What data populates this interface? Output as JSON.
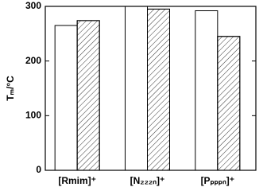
{
  "chart_data": {
    "type": "bar",
    "y_label": "Tₘ/°C",
    "categories": [
      "[Rmim]⁺",
      "[N₂₂₂ₙ]⁺",
      "[Pₚₚₚₙ]⁺"
    ],
    "series": [
      {
        "color": "#ffffff",
        "hatch": false,
        "values": [
          265,
          300,
          292
        ]
      },
      {
        "color": "#ffffff",
        "hatch": true,
        "values": [
          274,
          295,
          245
        ]
      }
    ],
    "ylim": [
      0,
      300
    ],
    "yticks": [
      0,
      100,
      200,
      300
    ]
  }
}
